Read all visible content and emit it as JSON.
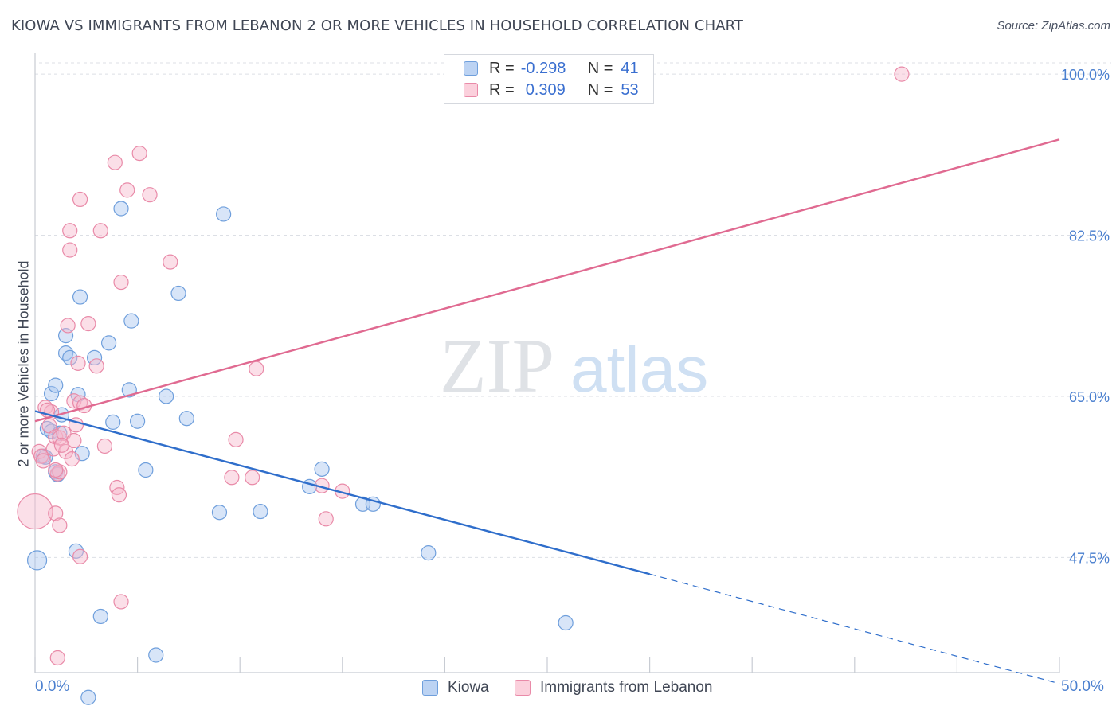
{
  "title": "KIOWA VS IMMIGRANTS FROM LEBANON 2 OR MORE VEHICLES IN HOUSEHOLD CORRELATION CHART",
  "source": "Source: ZipAtlas.com",
  "watermark": {
    "zip": "ZIP",
    "atlas": "atlas"
  },
  "legend": {
    "kiowa": {
      "r_label": "R =",
      "r_value": "-0.298",
      "n_label": "N =",
      "n_value": "41"
    },
    "lebanon": {
      "r_label": "R =",
      "r_value": "0.309",
      "n_label": "N =",
      "n_value": "53"
    }
  },
  "bottom_legend": {
    "kiowa": "Kiowa",
    "lebanon": "Immigrants from Lebanon"
  },
  "colors": {
    "kiowa_fill": "#a8c6ef",
    "kiowa_stroke": "#6f9fdc",
    "kiowa_line": "#2f6ecb",
    "lebanon_fill": "#f6b8cb",
    "lebanon_stroke": "#e98aa8",
    "lebanon_line": "#e06a91",
    "grid": "#dcdfe5",
    "tick_text": "#4a7fcf"
  },
  "chart_data": {
    "type": "scatter",
    "title": "KIOWA VS IMMIGRANTS FROM LEBANON 2 OR MORE VEHICLES IN HOUSEHOLD CORRELATION CHART",
    "xlabel": "",
    "ylabel": "2 or more Vehicles in Household",
    "xlim": [
      0,
      50
    ],
    "ylim": [
      35,
      102
    ],
    "x_tick_labels": [
      "0.0%",
      "50.0%"
    ],
    "y_ticks": [
      47.5,
      65.0,
      82.5,
      100.0
    ],
    "y_tick_labels": [
      "47.5%",
      "65.0%",
      "82.5%",
      "100.0%"
    ],
    "series": [
      {
        "name": "Kiowa",
        "points": [
          [
            0.1,
            47.2
          ],
          [
            0.4,
            58.5
          ],
          [
            0.6,
            61.5
          ],
          [
            0.8,
            61.2
          ],
          [
            0.8,
            65.3
          ],
          [
            1.0,
            66.2
          ],
          [
            1.0,
            56.8
          ],
          [
            1.1,
            56.5
          ],
          [
            1.2,
            61.0
          ],
          [
            1.3,
            63.0
          ],
          [
            1.5,
            69.7
          ],
          [
            1.5,
            71.6
          ],
          [
            1.7,
            69.2
          ],
          [
            2.0,
            48.2
          ],
          [
            2.1,
            65.2
          ],
          [
            2.2,
            75.8
          ],
          [
            2.3,
            58.8
          ],
          [
            2.6,
            32.3
          ],
          [
            2.9,
            69.2
          ],
          [
            3.2,
            41.1
          ],
          [
            3.6,
            70.8
          ],
          [
            3.8,
            62.2
          ],
          [
            4.2,
            85.4
          ],
          [
            4.6,
            65.7
          ],
          [
            4.7,
            73.2
          ],
          [
            5.0,
            62.3
          ],
          [
            5.4,
            57.0
          ],
          [
            5.9,
            36.9
          ],
          [
            6.4,
            65.0
          ],
          [
            7.0,
            76.2
          ],
          [
            7.4,
            62.6
          ],
          [
            9.2,
            84.8
          ],
          [
            9.0,
            52.4
          ],
          [
            11.0,
            52.5
          ],
          [
            13.4,
            55.2
          ],
          [
            14.0,
            57.1
          ],
          [
            16.0,
            53.3
          ],
          [
            16.5,
            53.3
          ],
          [
            19.2,
            48.0
          ],
          [
            25.9,
            40.4
          ],
          [
            0.5,
            58.4
          ]
        ]
      },
      {
        "name": "Immigrants from Lebanon",
        "points": [
          [
            0.0,
            52.5
          ],
          [
            0.2,
            59.0
          ],
          [
            0.3,
            58.5
          ],
          [
            0.4,
            58.0
          ],
          [
            0.5,
            63.8
          ],
          [
            0.7,
            61.8
          ],
          [
            0.8,
            63.3
          ],
          [
            0.9,
            59.3
          ],
          [
            1.0,
            60.6
          ],
          [
            1.0,
            52.3
          ],
          [
            1.1,
            56.6
          ],
          [
            1.1,
            36.6
          ],
          [
            1.2,
            60.5
          ],
          [
            1.2,
            56.8
          ],
          [
            1.2,
            51.0
          ],
          [
            1.4,
            61.0
          ],
          [
            1.5,
            59.0
          ],
          [
            1.6,
            72.7
          ],
          [
            1.7,
            83.0
          ],
          [
            1.7,
            80.9
          ],
          [
            1.8,
            58.2
          ],
          [
            1.9,
            60.2
          ],
          [
            1.9,
            64.5
          ],
          [
            2.0,
            61.9
          ],
          [
            2.1,
            68.6
          ],
          [
            2.2,
            64.3
          ],
          [
            2.2,
            47.6
          ],
          [
            2.2,
            86.4
          ],
          [
            2.6,
            72.9
          ],
          [
            3.0,
            68.3
          ],
          [
            3.2,
            83.0
          ],
          [
            3.4,
            59.6
          ],
          [
            3.9,
            90.4
          ],
          [
            4.0,
            55.1
          ],
          [
            4.1,
            54.3
          ],
          [
            4.2,
            77.4
          ],
          [
            4.2,
            42.7
          ],
          [
            4.5,
            87.4
          ],
          [
            5.1,
            91.4
          ],
          [
            5.6,
            86.9
          ],
          [
            6.6,
            79.6
          ],
          [
            9.6,
            56.2
          ],
          [
            9.8,
            60.3
          ],
          [
            10.6,
            56.2
          ],
          [
            10.8,
            68.0
          ],
          [
            14.0,
            55.3
          ],
          [
            14.2,
            51.7
          ],
          [
            15.0,
            54.7
          ],
          [
            42.3,
            100.0
          ],
          [
            1.0,
            57.0
          ],
          [
            0.6,
            63.5
          ],
          [
            2.4,
            64.0
          ],
          [
            1.3,
            59.7
          ]
        ]
      }
    ],
    "trend_lines": [
      {
        "series": "Kiowa",
        "solid": [
          [
            0,
            63.4
          ],
          [
            30,
            45.7
          ]
        ],
        "dashed": [
          [
            30,
            45.7
          ],
          [
            50,
            33.8
          ]
        ]
      },
      {
        "series": "Immigrants from Lebanon",
        "solid": [
          [
            0,
            62.3
          ],
          [
            50,
            92.9
          ]
        ]
      }
    ]
  }
}
